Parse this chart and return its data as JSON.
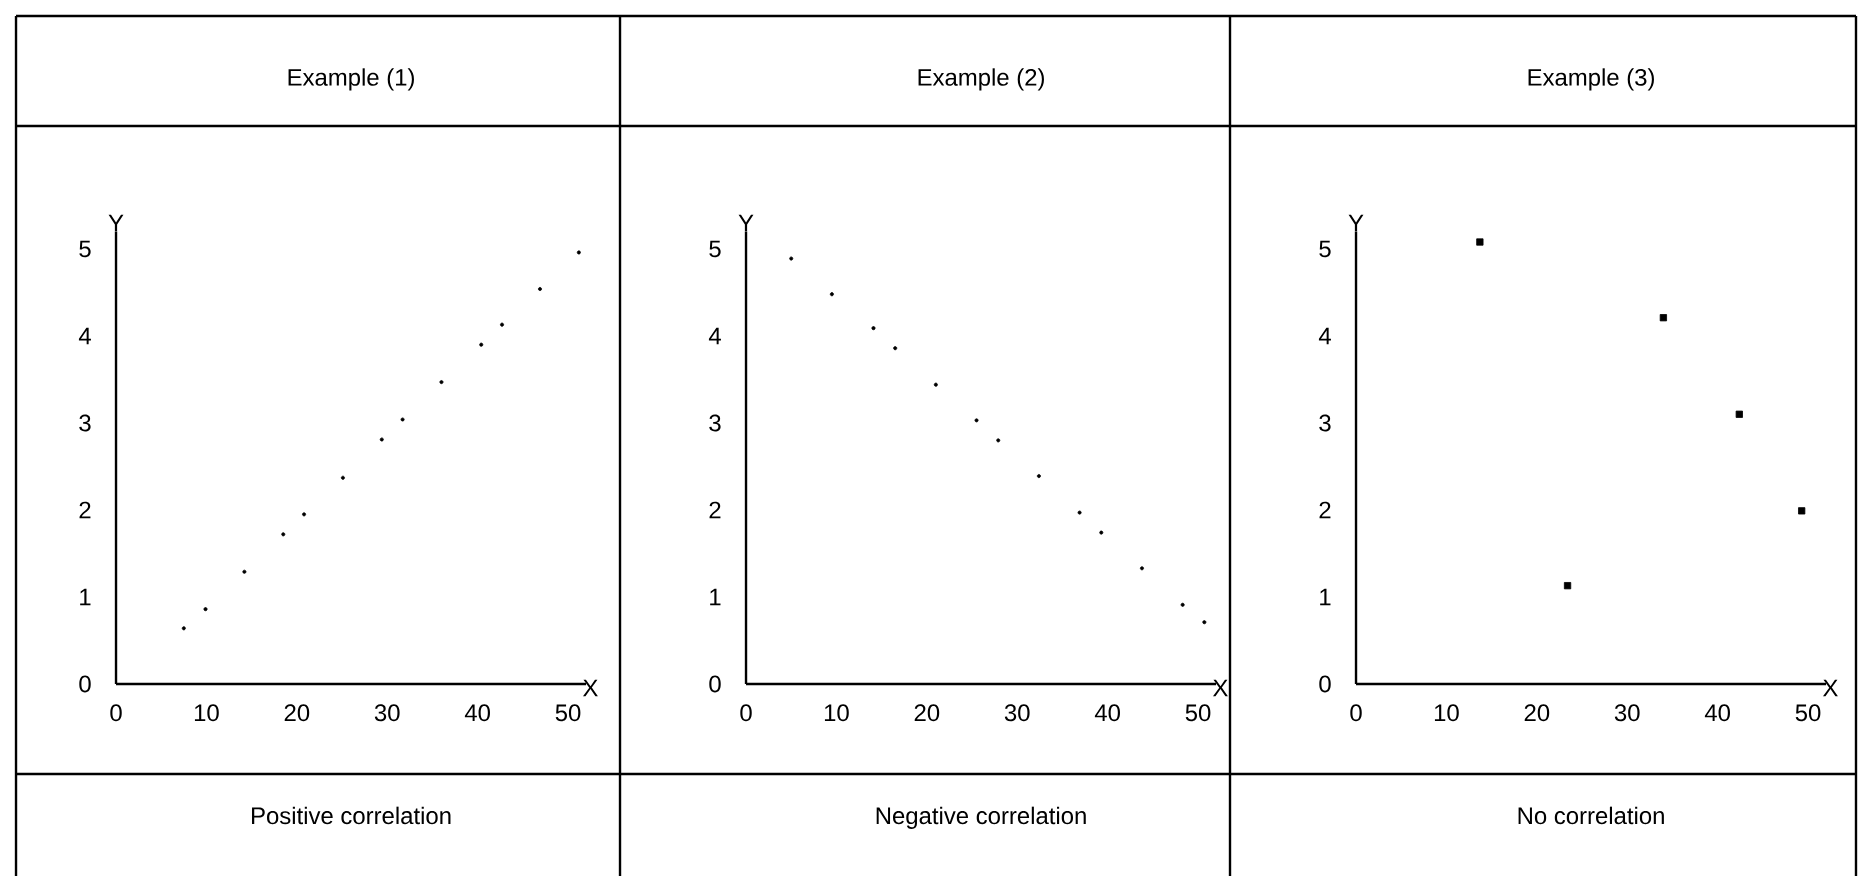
{
  "chart_data": [
    {
      "type": "scatter",
      "title": "Example (1)",
      "xlabel": "X",
      "ylabel": "Y",
      "annotations": [
        "Positive correlation"
      ],
      "marker": "circle",
      "color": "#000000",
      "xlim": [
        0,
        52
      ],
      "ylim": [
        0,
        5.2
      ],
      "xticks": [
        0,
        10,
        20,
        30,
        40,
        50
      ],
      "yticks": [
        0,
        1,
        2,
        3,
        4,
        5
      ],
      "x": [
        7.5,
        9.9,
        14.2,
        18.5,
        20.8,
        25.1,
        29.4,
        31.7,
        36.0,
        40.4,
        42.7,
        46.9,
        51.2
      ],
      "values": [
        0.64,
        0.86,
        1.29,
        1.72,
        1.95,
        2.37,
        2.81,
        3.04,
        3.47,
        3.9,
        4.13,
        4.54,
        4.96
      ]
    },
    {
      "type": "scatter",
      "title": "Example (2)",
      "xlabel": "X",
      "ylabel": "Y",
      "annotations": [
        "Negative correlation"
      ],
      "marker": "circle",
      "color": "#000000",
      "xlim": [
        0,
        52
      ],
      "ylim": [
        0,
        5.2
      ],
      "xticks": [
        0,
        10,
        20,
        30,
        40,
        50
      ],
      "yticks": [
        0,
        1,
        2,
        3,
        4,
        5
      ],
      "x": [
        5.0,
        9.5,
        14.1,
        16.5,
        21.0,
        25.5,
        27.9,
        32.4,
        36.9,
        39.3,
        43.8,
        48.3,
        50.7
      ],
      "values": [
        4.89,
        4.48,
        4.09,
        3.86,
        3.44,
        3.03,
        2.8,
        2.39,
        1.97,
        1.74,
        1.33,
        0.91,
        0.71
      ]
    },
    {
      "type": "scatter",
      "title": "Example (3)",
      "xlabel": "X",
      "ylabel": "Y",
      "annotations": [
        "No correlation"
      ],
      "marker": "square",
      "color": "#000000",
      "xlim": [
        0,
        52
      ],
      "ylim": [
        0,
        5.2
      ],
      "xticks": [
        0,
        10,
        20,
        30,
        40,
        50
      ],
      "yticks": [
        0,
        1,
        2,
        3,
        4,
        5
      ],
      "x": [
        13.7,
        23.4,
        34.0,
        42.4,
        49.3
      ],
      "values": [
        5.08,
        1.13,
        4.21,
        3.1,
        1.99
      ]
    }
  ]
}
